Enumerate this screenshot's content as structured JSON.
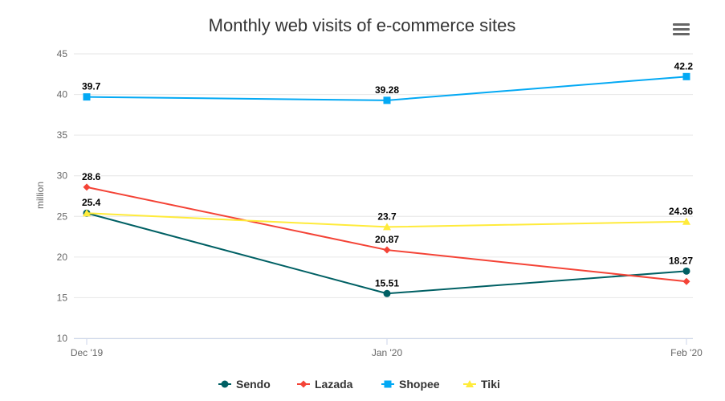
{
  "chart_data": {
    "type": "line",
    "title": "Monthly web visits of e-commerce sites",
    "xlabel": "",
    "ylabel": "million",
    "categories": [
      "Dec '19",
      "Jan '20",
      "Feb '20"
    ],
    "ylim": [
      10,
      45
    ],
    "yticks": [
      10,
      15,
      20,
      25,
      30,
      35,
      40,
      45
    ],
    "grid": true,
    "legend_position": "bottom",
    "series": [
      {
        "name": "Sendo",
        "color": "#006064",
        "marker": "circle",
        "values": [
          25.4,
          15.51,
          18.27
        ],
        "labels": [
          "25.4",
          "15.51",
          "18.27"
        ]
      },
      {
        "name": "Lazada",
        "color": "#f44336",
        "marker": "diamond",
        "values": [
          28.6,
          20.87,
          17.0
        ],
        "labels": [
          "28.6",
          "20.87",
          null
        ]
      },
      {
        "name": "Shopee",
        "color": "#03a9f4",
        "marker": "square",
        "values": [
          39.7,
          39.28,
          42.2
        ],
        "labels": [
          "39.7",
          "39.28",
          "42.2"
        ]
      },
      {
        "name": "Tiki",
        "color": "#ffeb3b",
        "marker": "triangle",
        "values": [
          25.4,
          23.7,
          24.36
        ],
        "labels": [
          null,
          "23.7",
          "24.36"
        ]
      }
    ]
  },
  "toolbar": {
    "menu_icon": "hamburger-menu-icon"
  }
}
